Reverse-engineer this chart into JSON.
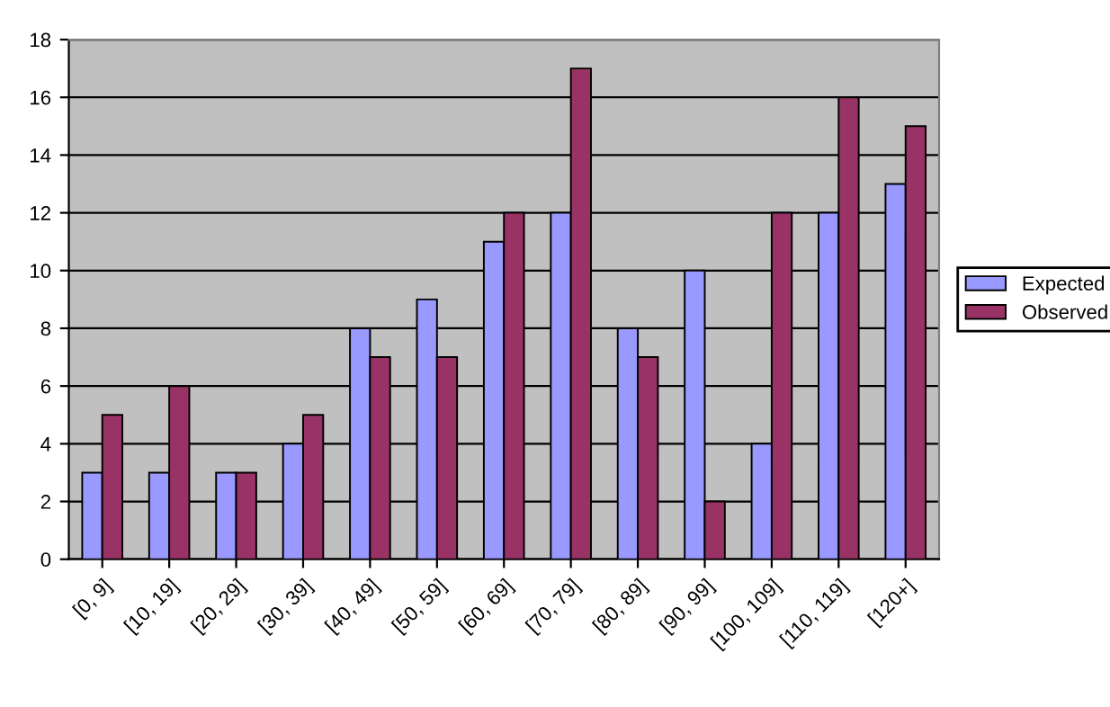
{
  "chart_data": {
    "type": "bar",
    "categories": [
      "[0, 9]",
      "[10, 19]",
      "[20, 29]",
      "[30, 39]",
      "[40, 49]",
      "[50, 59]",
      "[60, 69]",
      "[70, 79]",
      "[80, 89]",
      "[90, 99]",
      "[100, 109]",
      "[110, 119]",
      "[120+]"
    ],
    "series": [
      {
        "name": "Expected",
        "color": "#9999ff",
        "values": [
          3,
          3,
          3,
          4,
          8,
          9,
          11,
          12,
          8,
          10,
          4,
          12,
          13
        ]
      },
      {
        "name": "Observed",
        "color": "#993366",
        "values": [
          5,
          6,
          3,
          5,
          7,
          7,
          12,
          17,
          7,
          2,
          12,
          16,
          15
        ]
      }
    ],
    "ylim": [
      0,
      18
    ],
    "yticks": [
      0,
      2,
      4,
      6,
      8,
      10,
      12,
      14,
      16,
      18
    ],
    "grid": "y",
    "legend": "right"
  }
}
